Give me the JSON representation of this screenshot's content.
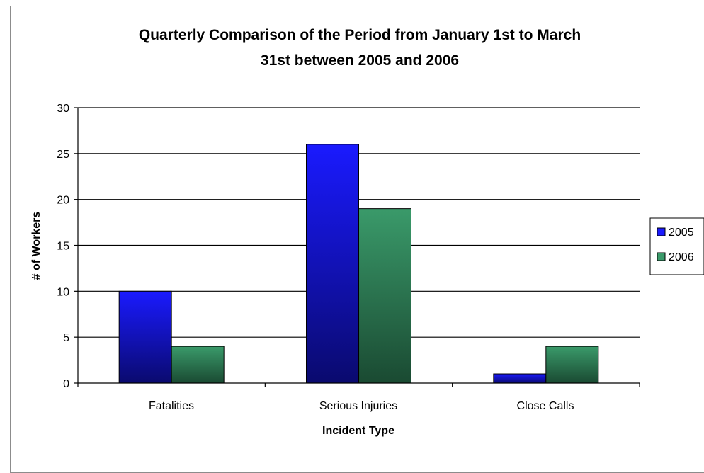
{
  "chart_data": {
    "type": "bar",
    "title_lines": [
      "Quarterly Comparison of the Period from January 1st to March",
      "31st between 2005 and 2006"
    ],
    "xlabel": "Incident Type",
    "ylabel": "# of Workers",
    "categories": [
      "Fatalities",
      "Serious Injuries",
      "Close Calls"
    ],
    "series": [
      {
        "name": "2005",
        "values": [
          10,
          26,
          1
        ],
        "color": "#1a1aff",
        "color_dark": "#0a0a6e"
      },
      {
        "name": "2006",
        "values": [
          4,
          19,
          4
        ],
        "color": "#3a9a6a",
        "color_dark": "#1a4a32"
      }
    ],
    "ylim": [
      0,
      30
    ],
    "yticks": [
      0,
      5,
      10,
      15,
      20,
      25,
      30
    ],
    "grid": true,
    "legend_position": "right"
  }
}
